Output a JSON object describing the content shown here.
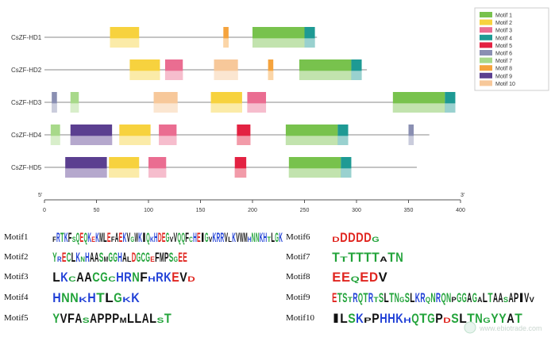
{
  "genes": [
    {
      "name": "CsZF-HD1",
      "length": 262,
      "motifs": [
        [
          63,
          91,
          2
        ],
        [
          172,
          177,
          8
        ],
        [
          200,
          250,
          1
        ],
        [
          250,
          260,
          4
        ]
      ]
    },
    {
      "name": "CsZF-HD2",
      "length": 310,
      "motifs": [
        [
          82,
          111,
          2
        ],
        [
          116,
          133,
          3
        ],
        [
          163,
          186,
          10
        ],
        [
          215,
          220,
          8
        ],
        [
          245,
          295,
          1
        ],
        [
          295,
          305,
          4
        ]
      ]
    },
    {
      "name": "CsZF-HD3",
      "length": 395,
      "motifs": [
        [
          7,
          12,
          6
        ],
        [
          25,
          33,
          7
        ],
        [
          105,
          128,
          10
        ],
        [
          160,
          190,
          2
        ],
        [
          195,
          213,
          3
        ],
        [
          335,
          385,
          1
        ],
        [
          385,
          395,
          4
        ]
      ]
    },
    {
      "name": "CsZF-HD4",
      "length": 370,
      "motifs": [
        [
          6,
          15,
          7
        ],
        [
          25,
          65,
          9
        ],
        [
          72,
          102,
          2
        ],
        [
          110,
          127,
          3
        ],
        [
          185,
          198,
          5
        ],
        [
          232,
          282,
          1
        ],
        [
          282,
          292,
          4
        ],
        [
          350,
          355,
          6
        ]
      ]
    },
    {
      "name": "CsZF-HD5",
      "length": 358,
      "motifs": [
        [
          20,
          60,
          9
        ],
        [
          62,
          91,
          2
        ],
        [
          100,
          117,
          3
        ],
        [
          183,
          194,
          5
        ],
        [
          235,
          285,
          1
        ],
        [
          285,
          295,
          4
        ]
      ]
    }
  ],
  "axis": {
    "left_end": "5'",
    "right_end": "3'",
    "min": 0,
    "max": 400,
    "ticks": [
      "0",
      "50",
      "100",
      "150",
      "200",
      "250",
      "300",
      "350",
      "400"
    ]
  },
  "legend": [
    {
      "label": "Motif 1",
      "color": "#78c24d"
    },
    {
      "label": "Motif 2",
      "color": "#f7d23e"
    },
    {
      "label": "Motif 3",
      "color": "#ea6d91"
    },
    {
      "label": "Motif 4",
      "color": "#1e9a94"
    },
    {
      "label": "Motif 5",
      "color": "#e32242"
    },
    {
      "label": "Motif 6",
      "color": "#8a8fb2"
    },
    {
      "label": "Motif 7",
      "color": "#a8d98a"
    },
    {
      "label": "Motif 8",
      "color": "#f5a33d"
    },
    {
      "label": "Motif 9",
      "color": "#5b3f90"
    },
    {
      "label": "Motif 10",
      "color": "#f7c89a"
    }
  ],
  "logos": [
    {
      "label": "Motif1",
      "seq": "FRTKFSQEQKEKMLEFAEKVGWKIQKHDEGVVQQFCHEIGVKRRVLKVWMHNNKHTLGK"
    },
    {
      "label": "Motif2",
      "seq": "YRECLKNHAASMGGHALDGCGEFMPSGEE"
    },
    {
      "label": "Motif3",
      "seq": "LKCAACGCHRNFHRKEVD"
    },
    {
      "label": "Motif4",
      "seq": "HNNKHTLGKK"
    },
    {
      "label": "Motif5",
      "seq": "YVFASAPPPMLLALST"
    },
    {
      "label": "Motif6",
      "seq": "DDDDDG"
    },
    {
      "label": "Motif7",
      "seq": "TTTTTTATN"
    },
    {
      "label": "Motif8",
      "seq": "EEQEDV"
    },
    {
      "label": "Motif9",
      "seq": "ETSTRQTRTSLTNGSLKRQNRQNPGGAGALTAASAPIVV"
    },
    {
      "label": "Motif10",
      "seq": "ILSKPPHHKHQTGPDSLTNGYYAT"
    }
  ],
  "watermark": "www.ebiotrade.com"
}
